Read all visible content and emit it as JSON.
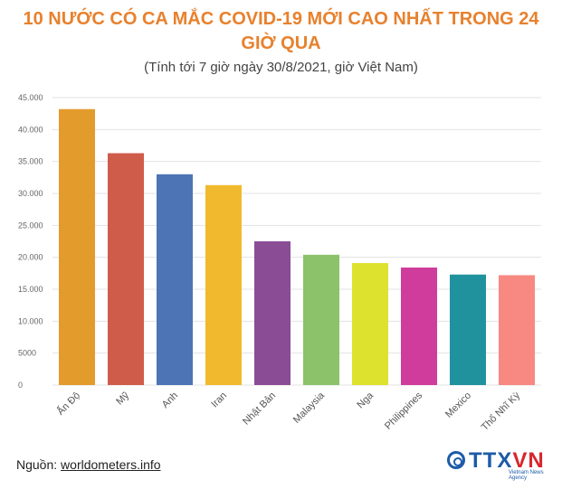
{
  "header": {
    "title_line1": "10 NƯỚC CÓ CA MẮC COVID-19 MỚI CAO NHẤT TRONG 24",
    "title_line2": "GIỜ QUA",
    "subtitle": "(Tính tới 7 giờ ngày 30/8/2021, giờ Việt Nam)"
  },
  "footer": {
    "source_prefix": "Nguồn: ",
    "source_link": "worldometers.info",
    "logo_brand_a": "TTX",
    "logo_brand_b": "VN",
    "logo_tagline": "Vietnam News Agency"
  },
  "chart_data": {
    "type": "bar",
    "categories": [
      "Ấn Độ",
      "Mỹ",
      "Anh",
      "Iran",
      "Nhật Bản",
      "Malaysia",
      "Nga",
      "Philippines",
      "Mexico",
      "Thổ Nhĩ Kỳ"
    ],
    "values": [
      43200,
      36300,
      33000,
      31300,
      22500,
      20400,
      19100,
      18400,
      17300,
      17200
    ],
    "colors": [
      "#e39b2c",
      "#cf5c4b",
      "#4d74b5",
      "#f1b92d",
      "#8a4c95",
      "#8bc26a",
      "#dde22e",
      "#d03c9c",
      "#20929e",
      "#f88882"
    ],
    "yticks": [
      0,
      5000,
      10000,
      15000,
      20000,
      25000,
      30000,
      35000,
      40000,
      45000
    ],
    "ytick_labels": [
      "0",
      "5000",
      "10.000",
      "15.000",
      "20.000",
      "25.000",
      "30.000",
      "35.000",
      "40.000",
      "45.000"
    ],
    "ylim": [
      0,
      45000
    ],
    "grid": true,
    "legend": "none"
  }
}
